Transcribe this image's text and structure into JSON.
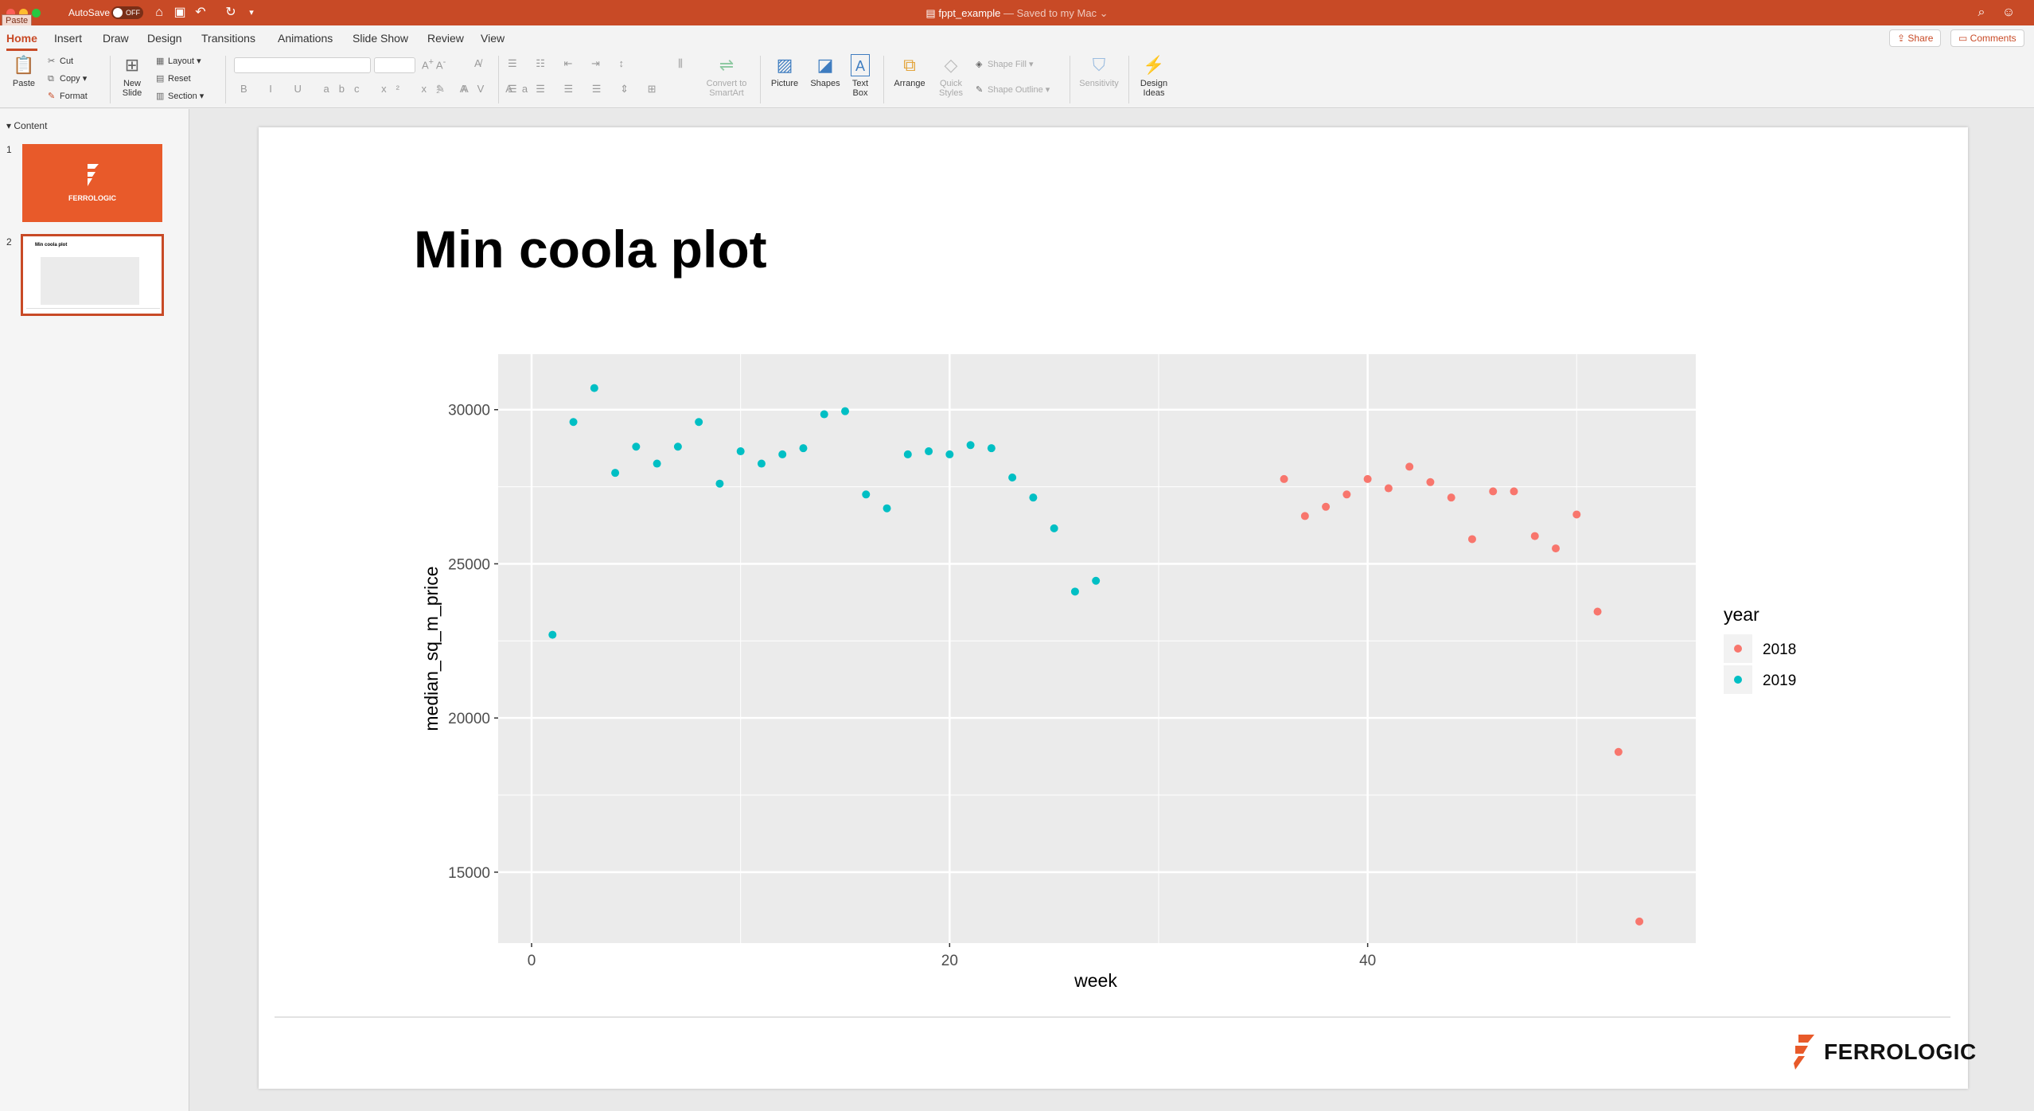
{
  "window": {
    "autosave_label": "AutoSave",
    "autosave_state": "OFF",
    "doc_name": "fppt_example",
    "doc_status": "— Saved to my Mac ⌄",
    "paste_tooltip": "Paste"
  },
  "ribbon_tabs": [
    "Home",
    "Insert",
    "Draw",
    "Design",
    "Transitions",
    "Animations",
    "Slide Show",
    "Review",
    "View"
  ],
  "share_label": "Share",
  "comments_label": "Comments",
  "ribbon": {
    "paste": "Paste",
    "cut": "Cut",
    "copy": "Copy",
    "format": "Format",
    "new_slide": [
      "New",
      "Slide"
    ],
    "layout": "Layout",
    "reset": "Reset",
    "section": "Section",
    "convert": [
      "Convert to",
      "SmartArt"
    ],
    "picture": "Picture",
    "shapes": "Shapes",
    "text_box": [
      "Text",
      "Box"
    ],
    "arrange": "Arrange",
    "quick_styles": [
      "Quick",
      "Styles"
    ],
    "shape_fill": "Shape Fill",
    "shape_outline": "Shape Outline",
    "sensitivity": "Sensitivity",
    "design_ideas": [
      "Design",
      "Ideas"
    ]
  },
  "sidebar": {
    "section": "Content",
    "slides": [
      {
        "number": "1",
        "logo_text": "FERROLOGIC"
      },
      {
        "number": "2",
        "title": "Min coola plot"
      }
    ]
  },
  "slide": {
    "title": "Min coola plot",
    "logo_text": "FERROLOGIC"
  },
  "colors": {
    "accent": "#c84a26",
    "panel_bg": "#ebebeb",
    "series_2018": "#f8766d",
    "series_2019": "#00bfc4"
  },
  "chart_data": {
    "type": "scatter",
    "xlabel": "week",
    "ylabel": "median_sq_m_price",
    "xlim": [
      -1.6,
      55.7
    ],
    "ylim": [
      12700,
      31800
    ],
    "xticks": [
      0,
      20,
      40
    ],
    "yticks": [
      15000,
      20000,
      25000,
      30000
    ],
    "grid": true,
    "legend_title": "year",
    "legend_position": "right",
    "series": [
      {
        "name": "2018",
        "x": [
          36,
          37,
          38,
          39,
          40,
          41,
          42,
          43,
          44,
          45,
          46,
          47,
          48,
          49,
          50,
          51,
          52,
          53
        ],
        "y": [
          27750,
          26550,
          26850,
          27250,
          27750,
          27450,
          28150,
          27650,
          27150,
          25800,
          27350,
          27350,
          25900,
          25500,
          26600,
          23450,
          18900,
          13400
        ]
      },
      {
        "name": "2019",
        "x": [
          1,
          2,
          3,
          4,
          5,
          6,
          7,
          8,
          9,
          10,
          11,
          12,
          13,
          14,
          15,
          16,
          17,
          18,
          19,
          20,
          21,
          22,
          23,
          24,
          25,
          26,
          27
        ],
        "y": [
          22700,
          29600,
          30700,
          27950,
          28800,
          28250,
          28800,
          29600,
          27600,
          28650,
          28250,
          28550,
          28750,
          29850,
          29950,
          27250,
          26800,
          28550,
          28650,
          28550,
          28850,
          28750,
          27800,
          27150,
          26150,
          24100,
          24450
        ]
      }
    ]
  }
}
